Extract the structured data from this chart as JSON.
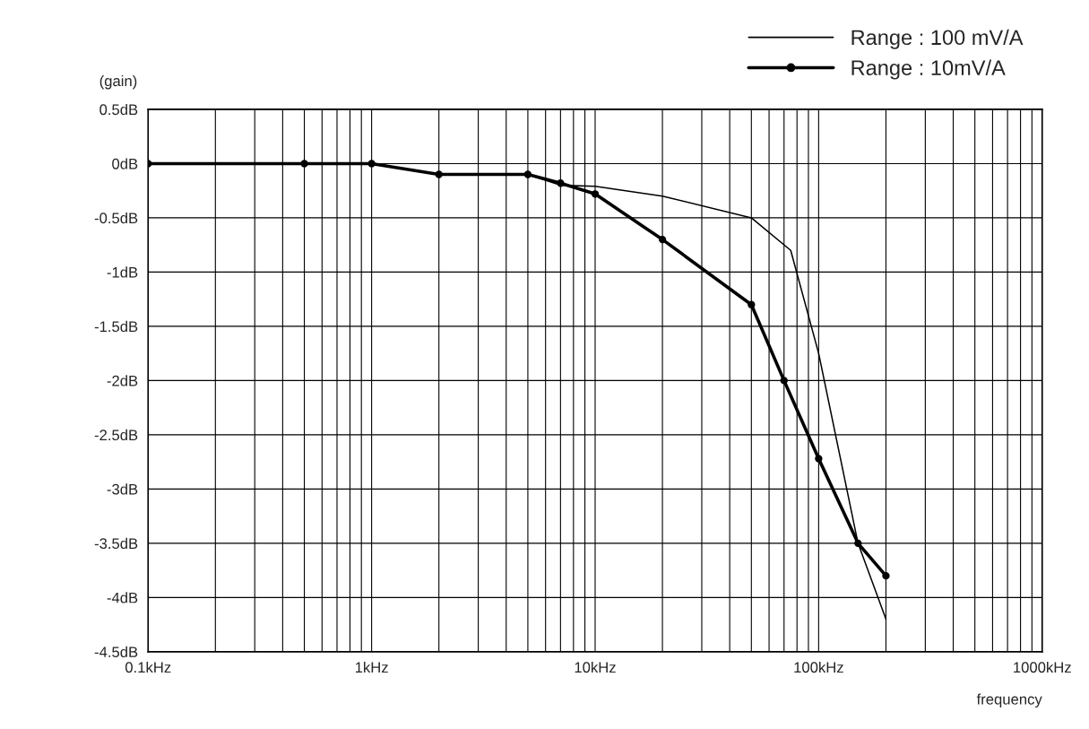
{
  "chart_data": {
    "type": "line",
    "xlabel": "frequency",
    "ylabel": "(gain)",
    "log": "x",
    "grid": true,
    "legend": "top right",
    "xlim": [
      0.1,
      1000
    ],
    "ylim": [
      -4.5,
      0.5
    ],
    "xticks": [
      {
        "value": 0.1,
        "label": "0.1kHz"
      },
      {
        "value": 0.2,
        "label": null
      },
      {
        "value": 0.3,
        "label": null
      },
      {
        "value": 0.4,
        "label": null
      },
      {
        "value": 0.5,
        "label": null
      },
      {
        "value": 0.6,
        "label": null
      },
      {
        "value": 0.7,
        "label": null
      },
      {
        "value": 0.8,
        "label": null
      },
      {
        "value": 0.9,
        "label": null
      },
      {
        "value": 1,
        "label": "1kHz"
      },
      {
        "value": 2,
        "label": null
      },
      {
        "value": 3,
        "label": null
      },
      {
        "value": 4,
        "label": null
      },
      {
        "value": 5,
        "label": null
      },
      {
        "value": 6,
        "label": null
      },
      {
        "value": 7,
        "label": null
      },
      {
        "value": 8,
        "label": null
      },
      {
        "value": 9,
        "label": null
      },
      {
        "value": 10,
        "label": "10kHz"
      },
      {
        "value": 20,
        "label": null
      },
      {
        "value": 30,
        "label": null
      },
      {
        "value": 40,
        "label": null
      },
      {
        "value": 50,
        "label": null
      },
      {
        "value": 60,
        "label": null
      },
      {
        "value": 70,
        "label": null
      },
      {
        "value": 80,
        "label": null
      },
      {
        "value": 90,
        "label": null
      },
      {
        "value": 100,
        "label": "100kHz"
      },
      {
        "value": 200,
        "label": null
      },
      {
        "value": 300,
        "label": null
      },
      {
        "value": 400,
        "label": null
      },
      {
        "value": 500,
        "label": null
      },
      {
        "value": 600,
        "label": null
      },
      {
        "value": 700,
        "label": null
      },
      {
        "value": 800,
        "label": null
      },
      {
        "value": 900,
        "label": null
      },
      {
        "value": 1000,
        "label": "1000kHz"
      }
    ],
    "yticks": [
      {
        "value": 0.5,
        "label": "0.5dB"
      },
      {
        "value": 0,
        "label": "0dB"
      },
      {
        "value": -0.5,
        "label": "-0.5dB"
      },
      {
        "value": -1,
        "label": "-1dB"
      },
      {
        "value": -1.5,
        "label": "-1.5dB"
      },
      {
        "value": -2,
        "label": "-2dB"
      },
      {
        "value": -2.5,
        "label": "-2.5dB"
      },
      {
        "value": -3,
        "label": "-3dB"
      },
      {
        "value": -3.5,
        "label": "-3.5dB"
      },
      {
        "value": -4,
        "label": "-4dB"
      },
      {
        "value": -4.5,
        "label": "-4.5dB"
      }
    ],
    "series": [
      {
        "name": "Range : 100 mV/A",
        "color": "#000000",
        "marker": "none",
        "x": [
          0.1,
          0.5,
          1,
          2,
          5,
          7,
          10,
          20,
          50,
          75,
          100,
          150,
          200
        ],
        "values": [
          0,
          0,
          0,
          -0.1,
          -0.1,
          -0.2,
          -0.21,
          -0.3,
          -0.5,
          -0.8,
          -1.75,
          -3.5,
          -4.2
        ]
      },
      {
        "name": "Range : 10mV/A",
        "color": "#000000",
        "marker": "circle",
        "x": [
          0.1,
          0.5,
          1,
          2,
          5,
          7,
          10,
          20,
          50,
          70,
          100,
          150,
          200
        ],
        "values": [
          0,
          0,
          0,
          -0.1,
          -0.1,
          -0.18,
          -0.28,
          -0.7,
          -1.3,
          -2.0,
          -2.72,
          -3.5,
          -3.8
        ]
      }
    ]
  }
}
